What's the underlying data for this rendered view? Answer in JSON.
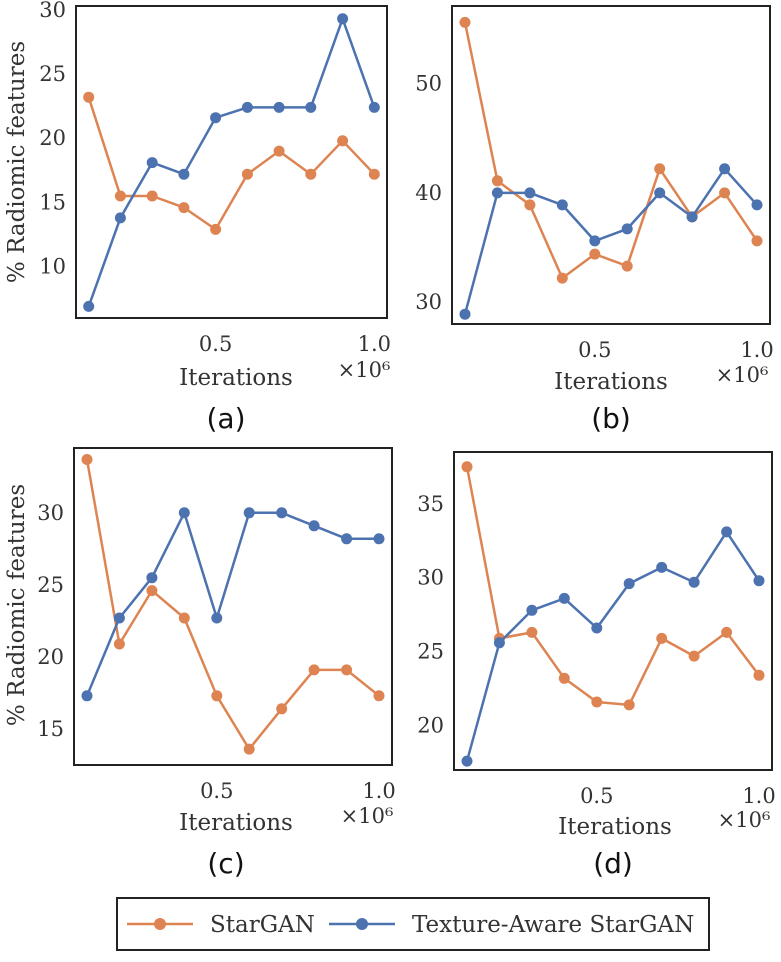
{
  "colors": {
    "stargan": "#DD8452",
    "texture": "#4C72B0",
    "frame": "#222222",
    "text": "#333333"
  },
  "legend": {
    "items": [
      {
        "label": "StarGAN",
        "series": "stargan"
      },
      {
        "label": "Texture-Aware StarGAN",
        "series": "texture"
      }
    ]
  },
  "chart_data": [
    {
      "type": "line",
      "caption": "(a)",
      "xlabel": "Iterations",
      "ylabel": "% Radiomic features",
      "x_multiplier": "×10⁶",
      "xlim": [
        0.06,
        1.04
      ],
      "ylim": [
        6.0,
        30.3
      ],
      "xticks": [
        0.5,
        1.0
      ],
      "xtick_labels": [
        "0.5",
        "1.0"
      ],
      "yticks": [
        10,
        15,
        20,
        25,
        30
      ],
      "x": [
        0.1,
        0.2,
        0.3,
        0.4,
        0.5,
        0.6,
        0.7,
        0.8,
        0.9,
        1.0
      ],
      "series": [
        {
          "name": "StarGAN",
          "key": "stargan",
          "values": [
            23.2,
            15.5,
            15.5,
            14.6,
            12.9,
            17.2,
            19.0,
            17.2,
            19.8,
            17.2
          ]
        },
        {
          "name": "Texture-Aware StarGAN",
          "key": "texture",
          "values": [
            6.9,
            13.8,
            18.1,
            17.2,
            21.6,
            22.4,
            22.4,
            22.4,
            29.3,
            22.4
          ]
        }
      ]
    },
    {
      "type": "line",
      "caption": "(b)",
      "xlabel": "Iterations",
      "ylabel": "",
      "x_multiplier": "×10⁶",
      "xlim": [
        0.06,
        1.04
      ],
      "ylim": [
        28.0,
        57.1
      ],
      "xticks": [
        0.5,
        1.0
      ],
      "xtick_labels": [
        "0.5",
        "1.0"
      ],
      "yticks": [
        30,
        40,
        50
      ],
      "x": [
        0.1,
        0.2,
        0.3,
        0.4,
        0.5,
        0.6,
        0.7,
        0.8,
        0.9,
        1.0
      ],
      "series": [
        {
          "name": "StarGAN",
          "key": "stargan",
          "values": [
            55.6,
            41.1,
            38.9,
            32.2,
            34.4,
            33.3,
            42.2,
            37.8,
            40.0,
            35.6
          ]
        },
        {
          "name": "Texture-Aware StarGAN",
          "key": "texture",
          "values": [
            28.9,
            40.0,
            40.0,
            38.9,
            35.6,
            36.7,
            40.0,
            37.8,
            42.2,
            38.9
          ]
        }
      ]
    },
    {
      "type": "line",
      "caption": "(c)",
      "xlabel": "Iterations",
      "ylabel": "% Radiomic features",
      "x_multiplier": "×10⁶",
      "xlim": [
        0.06,
        1.04
      ],
      "ylim": [
        12.5,
        34.5
      ],
      "xticks": [
        0.5,
        1.0
      ],
      "xtick_labels": [
        "0.5",
        "1.0"
      ],
      "yticks": [
        15,
        20,
        25,
        30
      ],
      "x": [
        0.1,
        0.2,
        0.3,
        0.4,
        0.5,
        0.6,
        0.7,
        0.8,
        0.9,
        1.0
      ],
      "series": [
        {
          "name": "StarGAN",
          "key": "stargan",
          "values": [
            33.7,
            20.9,
            24.6,
            22.7,
            17.3,
            13.6,
            16.4,
            19.1,
            19.1,
            17.3
          ]
        },
        {
          "name": "Texture-Aware StarGAN",
          "key": "texture",
          "values": [
            17.3,
            22.7,
            25.5,
            30.0,
            22.7,
            30.0,
            30.0,
            29.1,
            28.2,
            28.2
          ]
        }
      ]
    },
    {
      "type": "line",
      "caption": "(d)",
      "xlabel": "Iterations",
      "ylabel": "",
      "x_multiplier": "×10⁶",
      "xlim": [
        0.06,
        1.04
      ],
      "ylim": [
        17.0,
        38.5
      ],
      "xticks": [
        0.5,
        1.0
      ],
      "xtick_labels": [
        "0.5",
        "1.0"
      ],
      "yticks": [
        20,
        25,
        30,
        35
      ],
      "x": [
        0.1,
        0.2,
        0.3,
        0.4,
        0.5,
        0.6,
        0.7,
        0.8,
        0.9,
        1.0
      ],
      "series": [
        {
          "name": "StarGAN",
          "key": "stargan",
          "values": [
            37.5,
            25.9,
            26.3,
            23.2,
            21.6,
            21.4,
            25.9,
            24.7,
            26.3,
            23.4
          ]
        },
        {
          "name": "Texture-Aware StarGAN",
          "key": "texture",
          "values": [
            17.6,
            25.6,
            27.8,
            28.6,
            26.6,
            29.6,
            30.7,
            29.7,
            33.1,
            29.8
          ]
        }
      ]
    }
  ]
}
